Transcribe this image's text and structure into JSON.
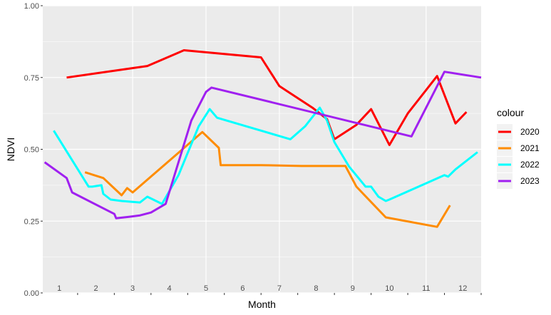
{
  "chart_data": {
    "type": "line",
    "xlabel": "Month",
    "ylabel": "NDVI",
    "xlim": [
      0.55,
      12.5
    ],
    "ylim": [
      0,
      1
    ],
    "yticks": [
      0,
      0.25,
      0.5,
      0.75,
      1
    ],
    "ytick_labels": [
      "0.00",
      "0.25",
      "0.50",
      "0.75",
      "1.00"
    ],
    "month_labels": [
      "1",
      "2",
      "3",
      "4",
      "5",
      "6",
      "7",
      "8",
      "9",
      "10",
      "11",
      "12"
    ],
    "grid": true,
    "legend": {
      "title": "colour",
      "position": "right"
    },
    "series": [
      {
        "name": "2020",
        "color": "#FF0000",
        "x": [
          1.2,
          3.4,
          4.4,
          6.5,
          7.0,
          7.9,
          8.3,
          8.5,
          9.1,
          9.5,
          10.0,
          10.5,
          11.3,
          11.8,
          12.1
        ],
        "y": [
          0.75,
          0.79,
          0.845,
          0.82,
          0.72,
          0.645,
          0.605,
          0.535,
          0.585,
          0.64,
          0.515,
          0.625,
          0.755,
          0.59,
          0.63
        ]
      },
      {
        "name": "2021",
        "color": "#FF8C00",
        "x": [
          1.7,
          2.2,
          2.7,
          2.85,
          3.0,
          4.9,
          5.35,
          5.4,
          6.5,
          7.6,
          8.1,
          8.8,
          9.1,
          9.9,
          11.3,
          11.65
        ],
        "y": [
          0.42,
          0.4,
          0.34,
          0.365,
          0.35,
          0.56,
          0.505,
          0.445,
          0.445,
          0.442,
          0.442,
          0.442,
          0.37,
          0.263,
          0.23,
          0.305
        ]
      },
      {
        "name": "2022",
        "color": "#00FFFF",
        "x": [
          0.85,
          1.8,
          1.9,
          2.15,
          2.2,
          2.4,
          2.7,
          3.2,
          3.4,
          3.8,
          4.25,
          4.8,
          5.1,
          5.3,
          7.3,
          7.7,
          8.1,
          8.3,
          8.5,
          8.9,
          9.35,
          9.5,
          9.7,
          9.9,
          10.0,
          11.5,
          11.6,
          11.8,
          12.4
        ],
        "y": [
          0.565,
          0.37,
          0.37,
          0.375,
          0.345,
          0.325,
          0.32,
          0.315,
          0.335,
          0.31,
          0.41,
          0.58,
          0.64,
          0.61,
          0.535,
          0.58,
          0.645,
          0.6,
          0.525,
          0.44,
          0.37,
          0.37,
          0.335,
          0.32,
          0.325,
          0.41,
          0.405,
          0.43,
          0.49
        ]
      },
      {
        "name": "2023",
        "color": "#A020F0",
        "x": [
          0.6,
          1.2,
          1.35,
          2.5,
          2.55,
          2.9,
          3.2,
          3.5,
          3.9,
          4.6,
          5.0,
          5.15,
          10.6,
          11.5,
          12.5
        ],
        "y": [
          0.455,
          0.4,
          0.35,
          0.275,
          0.26,
          0.265,
          0.27,
          0.28,
          0.31,
          0.6,
          0.7,
          0.715,
          0.545,
          0.77,
          0.75
        ]
      }
    ]
  }
}
